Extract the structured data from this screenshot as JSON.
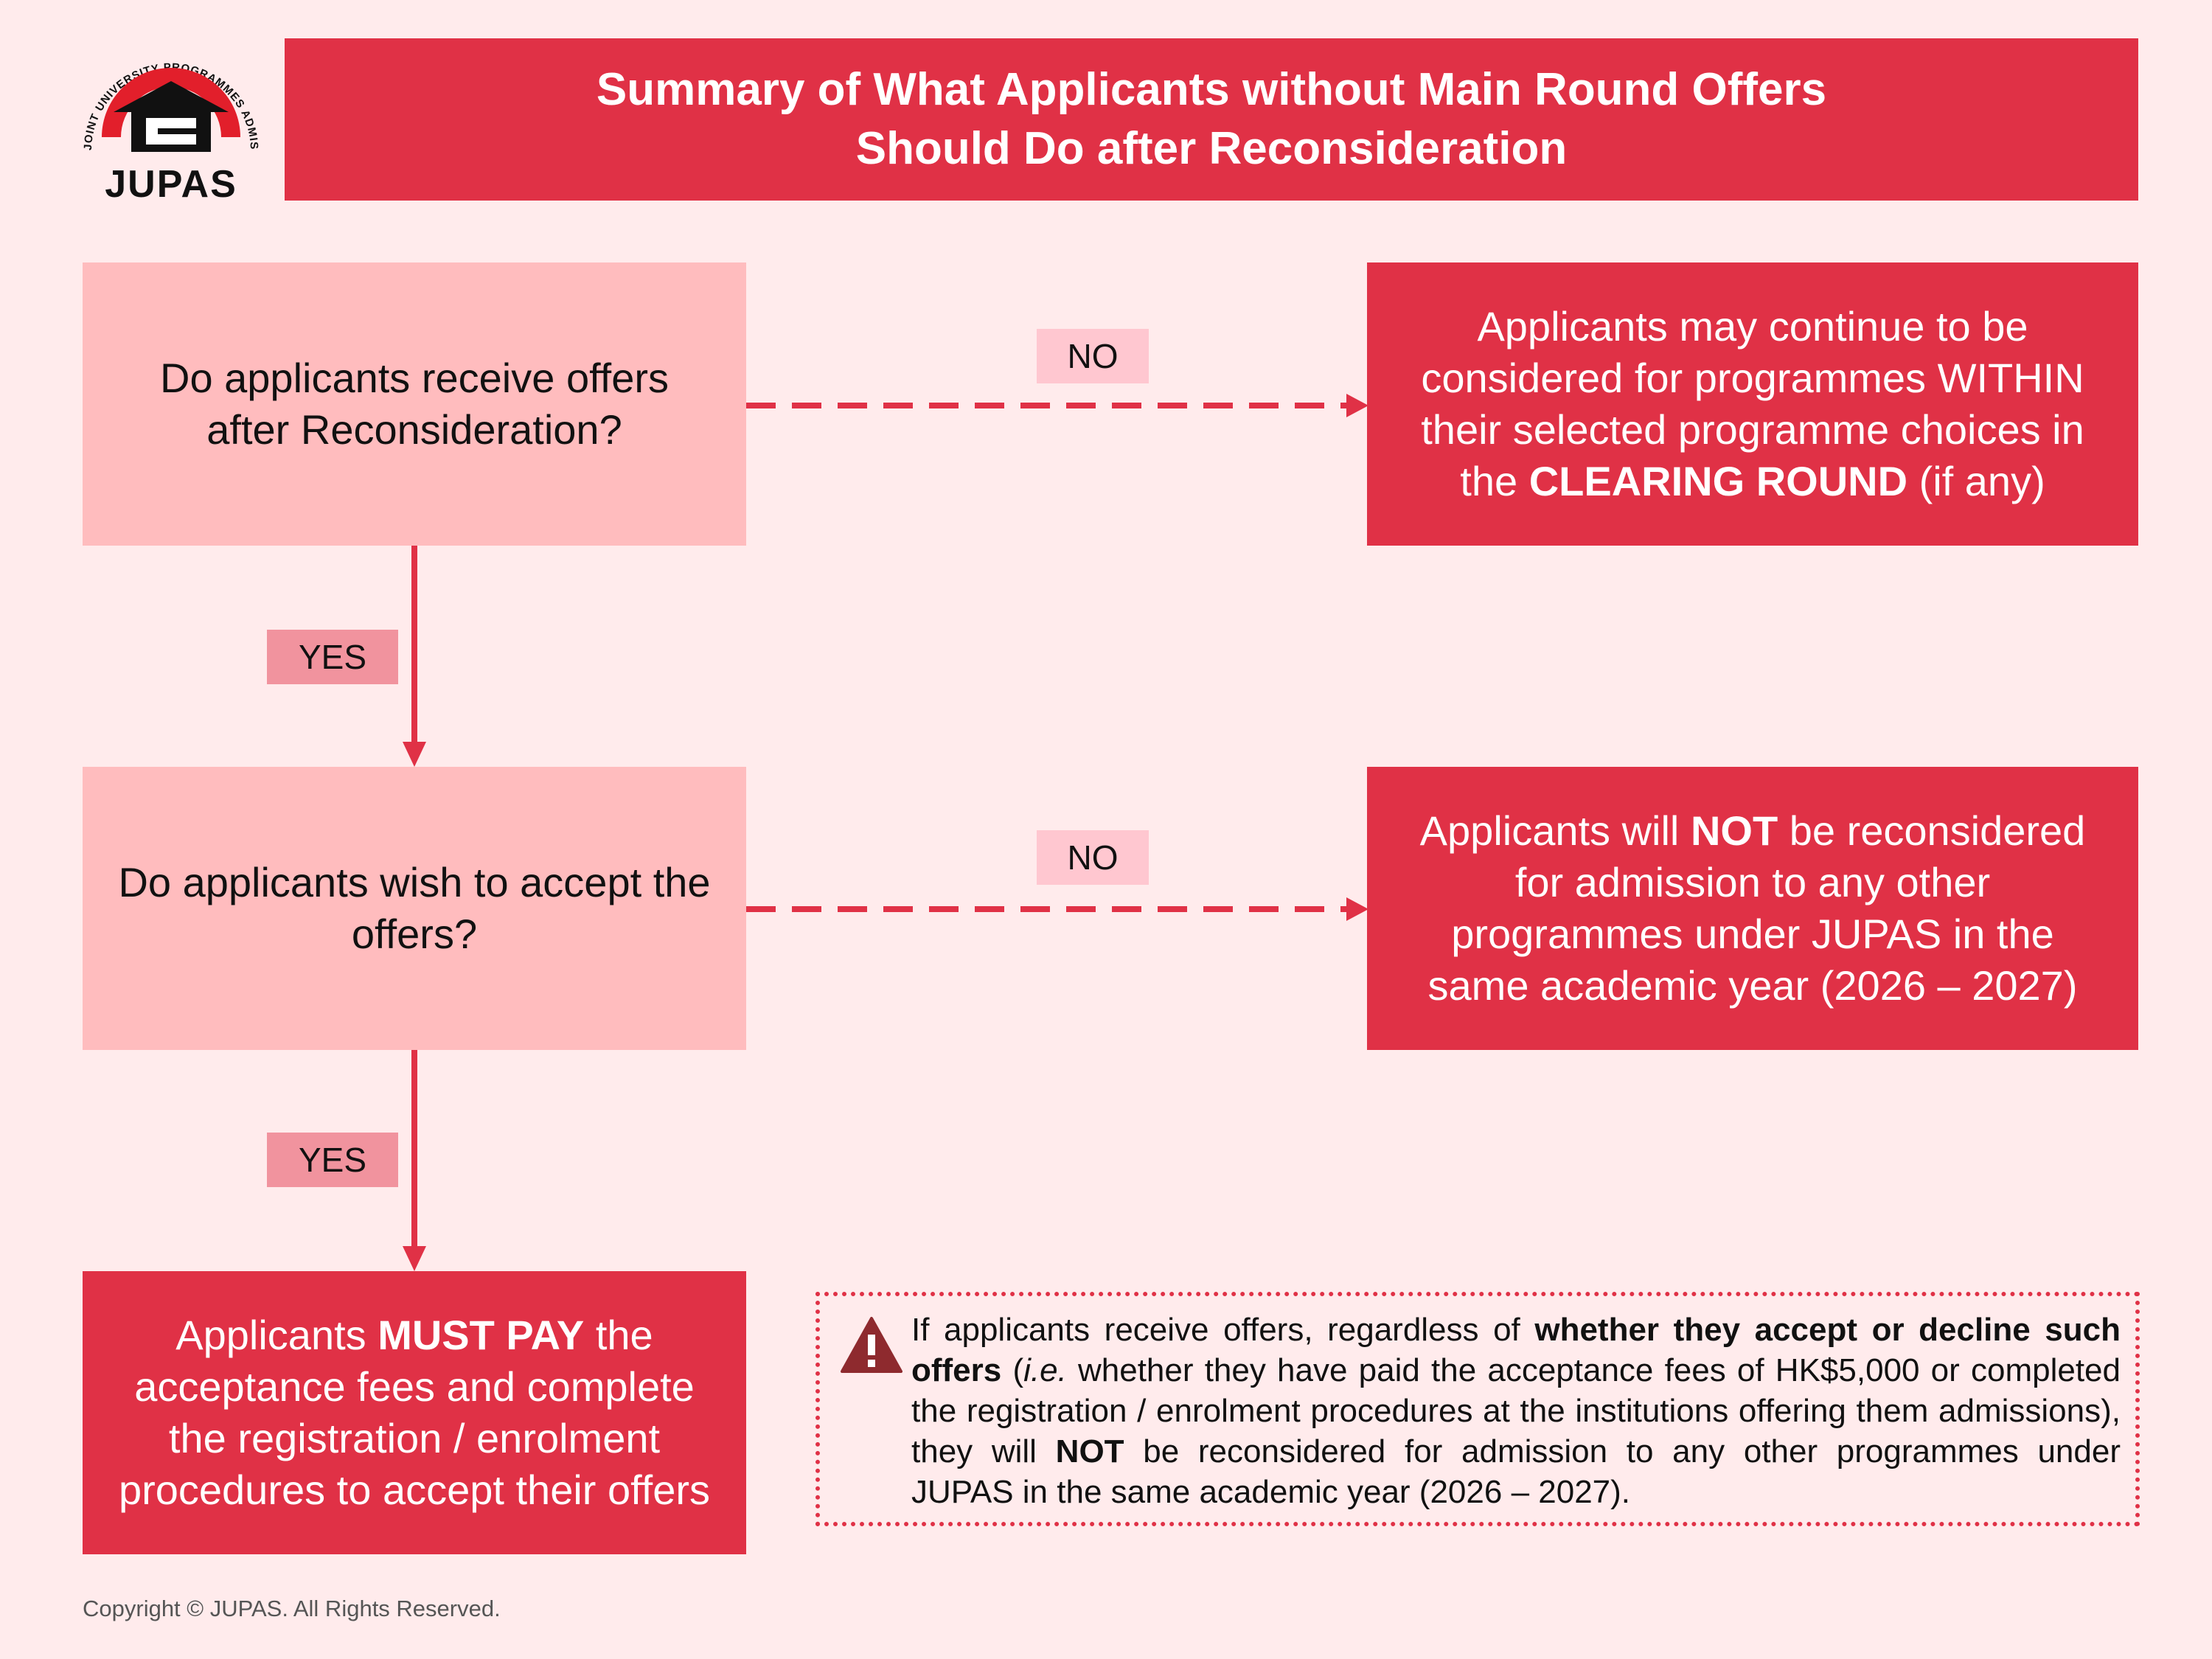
{
  "logo": {
    "ring_text": "JOINT UNIVERSITY PROGRAMMES ADMISSIONS SYSTEM",
    "name": "JUPAS"
  },
  "header": {
    "line1": "Summary of What Applicants without Main Round Offers",
    "line2": "Should Do after Reconsideration"
  },
  "question1": {
    "line1": "Do applicants receive offers",
    "line2": "after Reconsideration?"
  },
  "question2": {
    "line1": "Do applicants wish to accept the",
    "line2": "offers?"
  },
  "edges": {
    "no1": "NO",
    "no2": "NO",
    "yes1": "YES",
    "yes2": "YES"
  },
  "result_clearing": {
    "line1": "Applicants may continue to be",
    "line2": "considered for programmes WITHIN",
    "line3": "their selected programme choices in",
    "line4_pre": "the",
    "line4_bold": "CLEARING ROUND",
    "line4_post": "(if any)"
  },
  "result_not_reconsidered": {
    "line1_pre": "Applicants will",
    "line1_bold": "NOT",
    "line1_post": "be reconsidered",
    "line2": "for admission to any other",
    "line3": "programmes under JUPAS in the",
    "line4": "same academic year (2026 – 2027)"
  },
  "result_must_pay": {
    "line1_pre": "Applicants",
    "line1_bold": "MUST PAY",
    "line1_post": "the",
    "line2": "acceptance fees and complete",
    "line3": "the registration / enrolment",
    "line4": "procedures to accept their offers"
  },
  "note": {
    "icon": "warning-triangle-icon",
    "part1": "If applicants receive offers, regardless of",
    "part2_bold": "whether they accept or decline such offers",
    "part3": "(",
    "part4_italic": "i.e.",
    "part5": "whether they have paid the acceptance fees of HK$5,000 or completed the registration / enrolment procedures at the institutions offering them admissions), they will",
    "part6_bold": "NOT",
    "part7": "be reconsidered for admission to any other programmes under JUPAS in the same academic year (2026 – 2027)."
  },
  "footer": {
    "copyright": "Copyright © JUPAS. All Rights Reserved."
  },
  "colors": {
    "background": "#FFEBEC",
    "accent_red": "#E03146",
    "question_fill": "#FFBCBE",
    "no_tag": "#FFC7D0",
    "yes_tag": "#F1939E"
  }
}
